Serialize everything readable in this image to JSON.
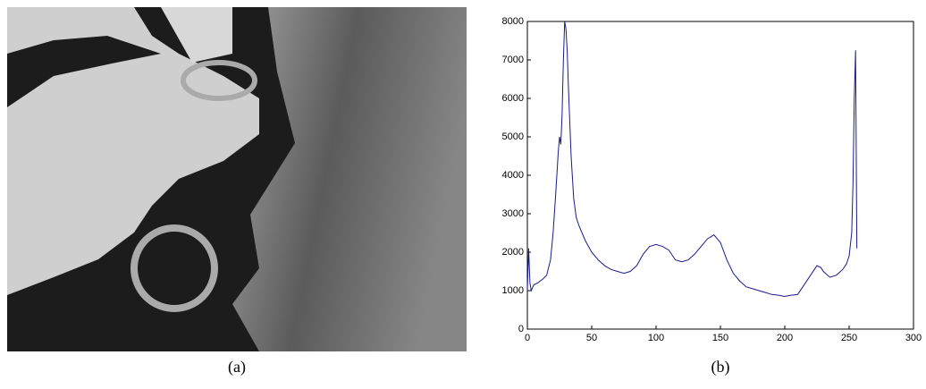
{
  "chart_data": {
    "type": "line",
    "x": [
      0,
      1,
      2,
      3,
      5,
      8,
      10,
      12,
      15,
      18,
      20,
      22,
      24,
      25,
      26,
      27,
      28,
      29,
      30,
      31,
      32,
      34,
      36,
      38,
      40,
      45,
      50,
      55,
      60,
      65,
      70,
      75,
      80,
      85,
      90,
      95,
      100,
      105,
      110,
      115,
      120,
      125,
      130,
      135,
      140,
      145,
      150,
      155,
      160,
      165,
      170,
      175,
      180,
      185,
      190,
      195,
      200,
      205,
      210,
      215,
      220,
      225,
      228,
      230,
      235,
      240,
      245,
      248,
      250,
      252,
      253,
      254,
      255,
      256
    ],
    "series": [
      {
        "color": "#1a1a8c",
        "values": [
          1000,
          2100,
          1200,
          1000,
          1150,
          1200,
          1250,
          1300,
          1400,
          1800,
          2500,
          3500,
          4600,
          5000,
          4800,
          5600,
          7000,
          8000,
          7800,
          7200,
          6200,
          4500,
          3400,
          2900,
          2700,
          2300,
          2000,
          1800,
          1650,
          1550,
          1500,
          1450,
          1500,
          1650,
          1950,
          2150,
          2200,
          2150,
          2050,
          1800,
          1750,
          1800,
          1950,
          2150,
          2350,
          2450,
          2250,
          1800,
          1450,
          1250,
          1100,
          1050,
          1000,
          950,
          900,
          880,
          850,
          880,
          900,
          1150,
          1400,
          1650,
          1600,
          1500,
          1350,
          1400,
          1550,
          1700,
          1900,
          2500,
          3800,
          6000,
          7250,
          2100
        ]
      }
    ],
    "xlim": [
      0,
      300
    ],
    "xticks": [
      0,
      50,
      100,
      150,
      200,
      250,
      300
    ],
    "ylim": [
      0,
      8000
    ],
    "yticks": [
      0,
      1000,
      2000,
      3000,
      4000,
      5000,
      6000,
      7000,
      8000
    ]
  },
  "captions": [
    "(a)",
    "(b)"
  ]
}
